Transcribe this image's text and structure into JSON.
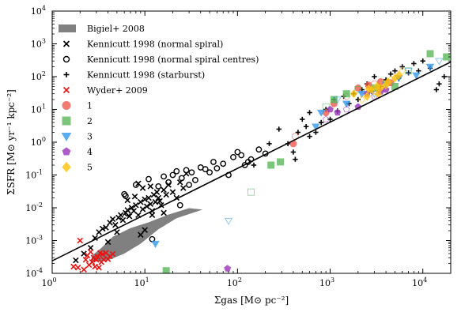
{
  "chart_data": {
    "type": "scatter",
    "title": "",
    "xlabel": "Σgas [M⊙ pc⁻²]",
    "ylabel": "ΣSFR [M⊙ yr⁻¹ kpc⁻²]",
    "xscale": "log",
    "yscale": "log",
    "xlim": [
      1,
      20000
    ],
    "ylim": [
      0.0001,
      10000
    ],
    "grid": false,
    "legend_position": "top-left",
    "x_tick_labels": [
      "10^0",
      "10^1",
      "10^2",
      "10^3",
      "10^4"
    ],
    "y_tick_labels": [
      "10^-4",
      "10^-3",
      "10^-2",
      "10^-1",
      "10^0",
      "10^1",
      "10^2",
      "10^3",
      "10^4"
    ],
    "fit_line": {
      "x": [
        1,
        20000
      ],
      "y": [
        0.00024,
        280
      ],
      "color": "#000000"
    },
    "bigiel_region": {
      "name": "Bigiel+ 2008",
      "color": "#808080",
      "polygon": [
        [
          2.6,
          0.00022
        ],
        [
          4,
          0.00025
        ],
        [
          6,
          0.0004
        ],
        [
          9,
          0.0008
        ],
        [
          14,
          0.0022
        ],
        [
          22,
          0.0048
        ],
        [
          33,
          0.007
        ],
        [
          42,
          0.0088
        ],
        [
          30,
          0.0097
        ],
        [
          18,
          0.0062
        ],
        [
          11,
          0.0036
        ],
        [
          7,
          0.0024
        ],
        [
          4.5,
          0.0013
        ],
        [
          3.4,
          0.0006
        ],
        [
          2.7,
          0.00035
        ]
      ]
    },
    "series": [
      {
        "name": "Kennicutt 1998 (normal spiral)",
        "marker": "x",
        "color": "#000000",
        "points": [
          [
            1.8,
            0.00025
          ],
          [
            2.2,
            0.0004
          ],
          [
            2.6,
            0.0006
          ],
          [
            2.9,
            0.0012
          ],
          [
            3.2,
            0.0018
          ],
          [
            3.5,
            0.0023
          ],
          [
            3.8,
            0.0025
          ],
          [
            4.2,
            0.0035
          ],
          [
            4.5,
            0.0045
          ],
          [
            4.8,
            0.003
          ],
          [
            5.2,
            0.005
          ],
          [
            5.5,
            0.006
          ],
          [
            5.8,
            0.0042
          ],
          [
            6.2,
            0.007
          ],
          [
            6.5,
            0.0085
          ],
          [
            6.8,
            0.0055
          ],
          [
            7.2,
            0.01
          ],
          [
            7.6,
            0.008
          ],
          [
            8,
            0.012
          ],
          [
            8.5,
            0.006
          ],
          [
            9,
            0.015
          ],
          [
            9.5,
            0.009
          ],
          [
            10,
            0.018
          ],
          [
            10.5,
            0.011
          ],
          [
            11,
            0.02
          ],
          [
            11.5,
            0.013
          ],
          [
            12,
            0.008
          ],
          [
            12.5,
            0.025
          ],
          [
            13,
            0.015
          ],
          [
            13.5,
            0.03
          ],
          [
            14,
            0.02
          ],
          [
            15,
            0.012
          ],
          [
            16,
            0.035
          ],
          [
            17,
            0.025
          ],
          [
            18,
            0.05
          ],
          [
            20,
            0.03
          ],
          [
            22,
            0.02
          ],
          [
            24,
            0.06
          ],
          [
            26,
            0.04
          ],
          [
            28,
            0.11
          ],
          [
            8.5,
            0.055
          ],
          [
            9.5,
            0.04
          ],
          [
            11.5,
            0.045
          ],
          [
            14.5,
            0.016
          ],
          [
            7.8,
            0.022
          ],
          [
            6.5,
            0.017
          ],
          [
            12,
            0.006
          ],
          [
            16,
            0.007
          ],
          [
            9,
            0.0015
          ],
          [
            10,
            0.0021
          ],
          [
            5,
            0.0018
          ],
          [
            4,
            0.0009
          ]
        ]
      },
      {
        "name": "Kennicutt 1998 (normal spiral centres)",
        "marker": "circle",
        "color": "#000000",
        "points": [
          [
            6,
            0.026
          ],
          [
            6.2,
            0.023
          ],
          [
            6.5,
            0.0067
          ],
          [
            8,
            0.05
          ],
          [
            11,
            0.075
          ],
          [
            14,
            0.045
          ],
          [
            16,
            0.09
          ],
          [
            18,
            0.06
          ],
          [
            20,
            0.1
          ],
          [
            22,
            0.13
          ],
          [
            25,
            0.08
          ],
          [
            28,
            0.14
          ],
          [
            30,
            0.05
          ],
          [
            32,
            0.12
          ],
          [
            35,
            0.07
          ],
          [
            40,
            0.17
          ],
          [
            45,
            0.15
          ],
          [
            50,
            0.12
          ],
          [
            55,
            0.25
          ],
          [
            60,
            0.16
          ],
          [
            70,
            0.22
          ],
          [
            80,
            0.1
          ],
          [
            90,
            0.35
          ],
          [
            100,
            0.5
          ],
          [
            110,
            0.4
          ],
          [
            120,
            0.2
          ],
          [
            130,
            0.25
          ],
          [
            140,
            0.3
          ],
          [
            170,
            0.6
          ],
          [
            200,
            0.45
          ],
          [
            12,
            0.0011
          ],
          [
            24,
            0.012
          ]
        ]
      },
      {
        "name": "Kennicutt 1998 (starburst)",
        "marker": "plus",
        "color": "#000000",
        "points": [
          [
            150,
            0.2
          ],
          [
            220,
            0.9
          ],
          [
            280,
            2.5
          ],
          [
            350,
            0.9
          ],
          [
            400,
            0.5
          ],
          [
            420,
            0.3
          ],
          [
            450,
            2
          ],
          [
            500,
            5
          ],
          [
            550,
            3
          ],
          [
            600,
            8
          ],
          [
            700,
            2
          ],
          [
            800,
            4
          ],
          [
            900,
            10
          ],
          [
            1000,
            5
          ],
          [
            1100,
            20
          ],
          [
            1200,
            9
          ],
          [
            1400,
            25
          ],
          [
            1600,
            15
          ],
          [
            1800,
            30
          ],
          [
            2000,
            20
          ],
          [
            2200,
            40
          ],
          [
            2500,
            60
          ],
          [
            2800,
            35
          ],
          [
            3000,
            100
          ],
          [
            3500,
            50
          ],
          [
            4000,
            80
          ],
          [
            4500,
            120
          ],
          [
            5000,
            150
          ],
          [
            5500,
            90
          ],
          [
            6000,
            200
          ],
          [
            7000,
            130
          ],
          [
            8000,
            250
          ],
          [
            9000,
            150
          ],
          [
            10000,
            300
          ],
          [
            12000,
            180
          ],
          [
            14000,
            40
          ],
          [
            15000,
            60
          ],
          [
            17000,
            100
          ],
          [
            600,
            1.5
          ]
        ]
      },
      {
        "name": "Wyder+ 2009",
        "marker": "x",
        "color": "#ee1111",
        "points": [
          [
            1.7,
            0.00016
          ],
          [
            1.9,
            0.00015
          ],
          [
            2,
            0.001
          ],
          [
            2.2,
            0.00013
          ],
          [
            2.3,
            0.00026
          ],
          [
            2.4,
            0.00035
          ],
          [
            2.5,
            0.00018
          ],
          [
            2.6,
            0.00045
          ],
          [
            2.7,
            0.00022
          ],
          [
            2.8,
            0.0003
          ],
          [
            2.9,
            0.00016
          ],
          [
            3,
            0.00026
          ],
          [
            3.1,
            0.00032
          ],
          [
            3.2,
            0.00015
          ],
          [
            3.4,
            0.00022
          ],
          [
            3.5,
            0.00038
          ],
          [
            3.6,
            0.00026
          ],
          [
            3.8,
            0.00042
          ],
          [
            4,
            0.00027
          ],
          [
            4.2,
            0.00033
          ],
          [
            4.5,
            0.00039
          ],
          [
            3.3,
            0.00042
          ]
        ]
      },
      {
        "name": "1",
        "marker": "circle-filled",
        "color": "#ee5a4f",
        "points": [
          [
            400,
            0.9
          ],
          [
            420,
            1.5
          ],
          [
            900,
            8
          ],
          [
            1100,
            15
          ],
          [
            1500,
            25
          ],
          [
            2000,
            45
          ],
          [
            2600,
            55
          ],
          [
            3000,
            60
          ],
          [
            3500,
            70
          ],
          [
            4500,
            65
          ]
        ]
      },
      {
        "name": "2",
        "marker": "square",
        "color": "#5cb85c",
        "points": [
          [
            17,
            0.00012
          ],
          [
            140,
            0.03
          ],
          [
            230,
            0.2
          ],
          [
            290,
            0.25
          ],
          [
            900,
            12
          ],
          [
            1100,
            20
          ],
          [
            1500,
            30
          ],
          [
            2000,
            40
          ],
          [
            3000,
            45
          ],
          [
            5000,
            50
          ],
          [
            7000,
            150
          ],
          [
            12000,
            500
          ],
          [
            18000,
            400
          ]
        ]
      },
      {
        "name": "3",
        "marker": "triangle-down",
        "color": "#3399ee",
        "points": [
          [
            13,
            0.0008
          ],
          [
            80,
            0.004
          ],
          [
            700,
            3
          ],
          [
            800,
            8
          ],
          [
            1200,
            20
          ],
          [
            1500,
            15
          ],
          [
            2200,
            30
          ],
          [
            3000,
            30
          ],
          [
            4000,
            60
          ],
          [
            5500,
            90
          ],
          [
            7000,
            150
          ],
          [
            8500,
            110
          ],
          [
            12000,
            200
          ],
          [
            15000,
            300
          ]
        ]
      },
      {
        "name": "4",
        "marker": "pentagon",
        "color": "#9933bb",
        "points": [
          [
            78,
            0.00014
          ],
          [
            900,
            5
          ],
          [
            1000,
            10
          ],
          [
            1200,
            8
          ],
          [
            1500,
            10
          ],
          [
            2000,
            12
          ],
          [
            2500,
            30
          ],
          [
            3000,
            25
          ],
          [
            3500,
            35
          ],
          [
            4000,
            40
          ]
        ]
      },
      {
        "name": "5",
        "marker": "diamond",
        "color": "#ffc107",
        "points": [
          [
            1800,
            30
          ],
          [
            2200,
            20
          ],
          [
            2500,
            25
          ],
          [
            2800,
            40
          ],
          [
            3000,
            35
          ],
          [
            3200,
            50
          ],
          [
            3500,
            45
          ],
          [
            3700,
            60
          ],
          [
            4000,
            55
          ],
          [
            4200,
            70
          ],
          [
            4500,
            80
          ],
          [
            5000,
            90
          ],
          [
            5500,
            110
          ],
          [
            6000,
            150
          ],
          [
            3300,
            30
          ],
          [
            2600,
            42
          ]
        ]
      }
    ]
  }
}
